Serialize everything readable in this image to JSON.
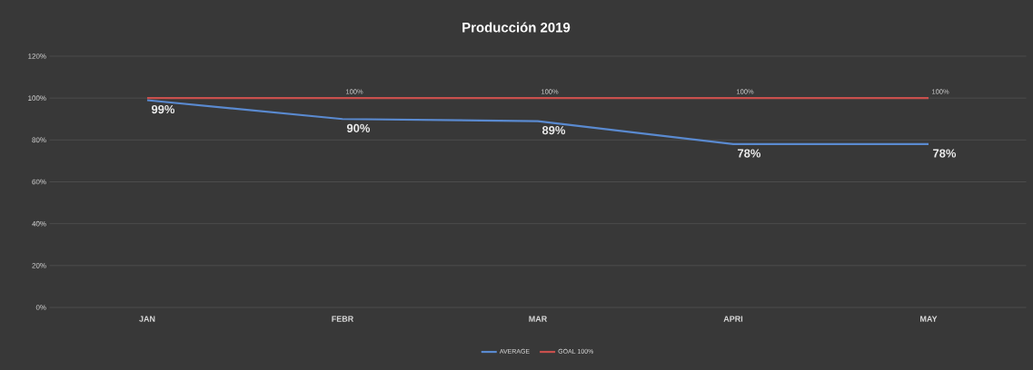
{
  "chart_data": {
    "type": "line",
    "title": "Producción  2019",
    "categories": [
      "JAN",
      "FEBR",
      "MAR",
      "APRI",
      "MAY"
    ],
    "series": [
      {
        "name": "AVERAGE",
        "color": "#5a8ad0",
        "values": [
          99,
          90,
          89,
          78,
          78
        ],
        "value_labels": [
          "99%",
          "90%",
          "89%",
          "78%",
          "78%"
        ]
      },
      {
        "name": "GOAL 100%",
        "color": "#c9504d",
        "values": [
          100,
          100,
          100,
          100,
          100
        ],
        "value_labels": [
          null,
          "100%",
          "100%",
          "100%",
          "100%"
        ]
      }
    ],
    "ylim": [
      0,
      120
    ],
    "yticks": [
      {
        "value": 0,
        "label": "0%"
      },
      {
        "value": 20,
        "label": "20%"
      },
      {
        "value": 40,
        "label": "40%"
      },
      {
        "value": 60,
        "label": "60%"
      },
      {
        "value": 80,
        "label": "80%"
      },
      {
        "value": 100,
        "label": "100%"
      },
      {
        "value": 120,
        "label": "120%"
      }
    ],
    "grid": "y",
    "legend": "bottom"
  }
}
